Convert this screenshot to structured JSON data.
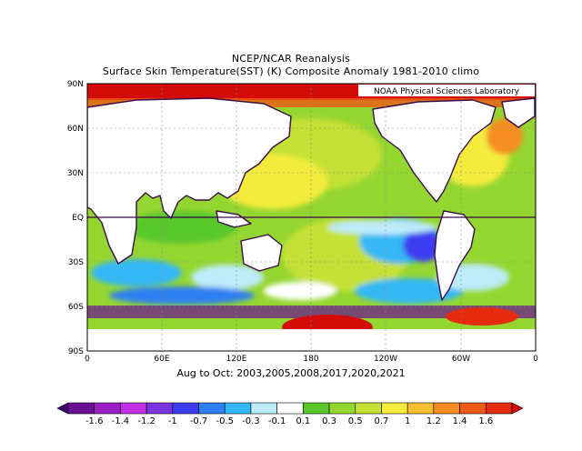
{
  "header": {
    "title_line1": "NCEP/NCAR Reanalysis",
    "title_line2": "Surface Skin Temperature(SST) (K) Composite Anomaly 1981-2010 climo"
  },
  "map": {
    "credit": "NOAA Physical Sciences Laboratory",
    "lat_labels": [
      "90N",
      "60N",
      "30N",
      "EQ",
      "30S",
      "60S",
      "90S"
    ],
    "lon_labels": [
      "0",
      "60E",
      "120E",
      "180",
      "120W",
      "60W",
      "0"
    ],
    "projection": "equirectangular",
    "lon_range": [
      0,
      360
    ],
    "lat_range": [
      -90,
      90
    ]
  },
  "footer": {
    "composite_label": "Aug to Oct: 2003,2005,2008,2017,2020,2021"
  },
  "colorbar": {
    "labels": [
      "-1.6",
      "-1.4",
      "-1.2",
      "-1",
      "-0.7",
      "-0.5",
      "-0.3",
      "-0.1",
      "0.1",
      "0.3",
      "0.5",
      "0.7",
      "1",
      "1.2",
      "1.4",
      "1.6"
    ],
    "colors": [
      "#3d006b",
      "#6a0e93",
      "#9a1fc2",
      "#c430e6",
      "#7b32e0",
      "#3c3cf0",
      "#2f7ff2",
      "#34b8f5",
      "#bdebf9",
      "#ffffff",
      "#59c729",
      "#94d630",
      "#c5e136",
      "#f4ec3c",
      "#f7c02f",
      "#f48c22",
      "#ee5a16",
      "#e52b10",
      "#d40c07"
    ]
  },
  "colors": {
    "land": "#ffffff",
    "coastline": "#3a0b4a",
    "frame": "#000000"
  }
}
